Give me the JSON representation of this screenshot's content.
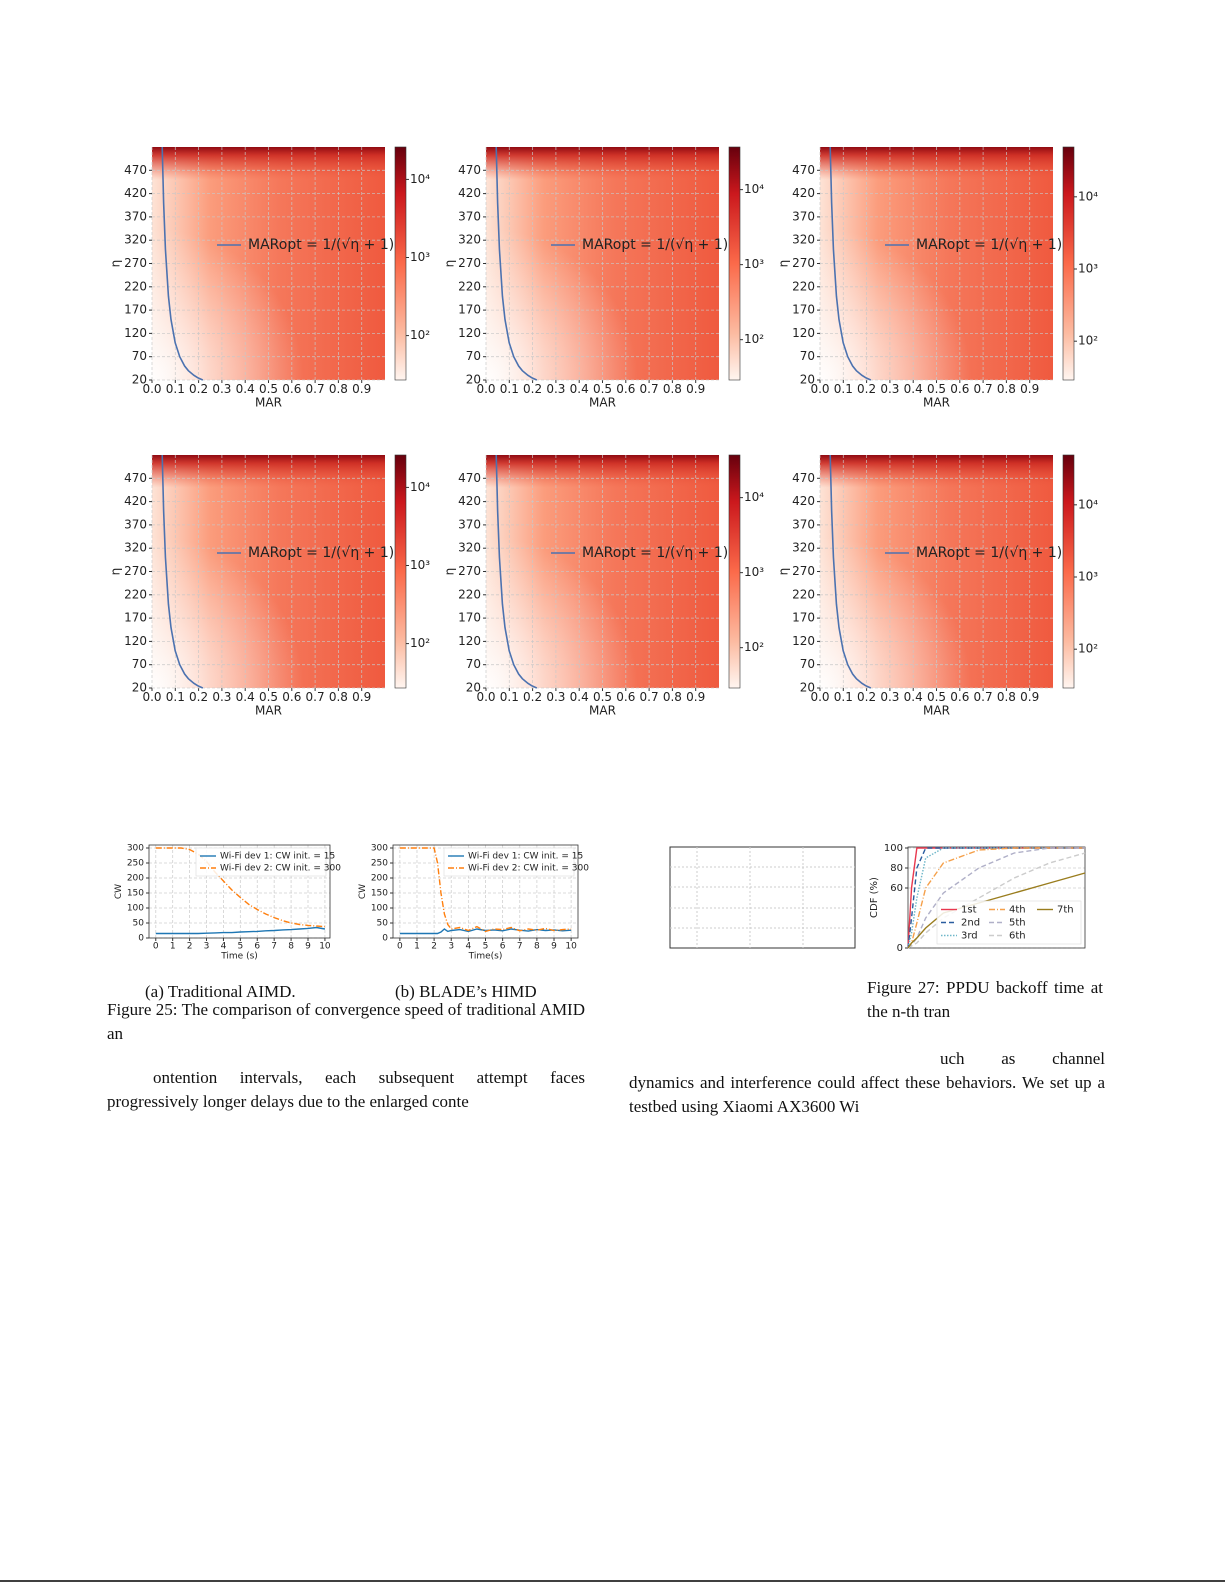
{
  "chart_data": [
    {
      "type": "heatmap",
      "xlabel": "MAR",
      "ylabel": "η",
      "xlim": [
        0,
        1
      ],
      "ylim": [
        20,
        520
      ],
      "xticks": [
        {
          "value": 0,
          "label": "0.0"
        },
        0.1,
        0.2,
        0.3,
        0.4,
        0.5,
        0.6,
        0.7,
        0.8,
        0.9
      ],
      "yticks": [
        20,
        70,
        120,
        170,
        220,
        270,
        320,
        370,
        420,
        470
      ],
      "grid": true,
      "series": [
        {
          "name": "MARopt = 1/(√η + 1)",
          "color": "#4c72b0",
          "x": [
            0.218,
            0.196,
            0.18,
            0.156,
            0.14,
            0.119,
            0.0995,
            0.0814,
            0.0705,
            0.0577,
            0.0499,
            0.0438
          ],
          "values": [
            20,
            25,
            30,
            40,
            50,
            70,
            100,
            150,
            200,
            300,
            400,
            520
          ]
        }
      ],
      "colorbar": {
        "log": true,
        "lim": [
          27,
          26000
        ],
        "ticks": [
          {
            "value": 100,
            "label": "10²"
          },
          {
            "value": 1000,
            "label": "10³"
          },
          {
            "value": 10000,
            "label": "10⁴"
          }
        ]
      }
    },
    {
      "type": "heatmap",
      "xlabel": "MAR",
      "ylabel": "η",
      "xlim": [
        0,
        1
      ],
      "ylim": [
        20,
        520
      ],
      "xticks": [
        {
          "value": 0,
          "label": "0.0"
        },
        0.1,
        0.2,
        0.3,
        0.4,
        0.5,
        0.6,
        0.7,
        0.8,
        0.9
      ],
      "yticks": [
        20,
        70,
        120,
        170,
        220,
        270,
        320,
        370,
        420,
        470
      ],
      "grid": true,
      "series": [
        {
          "name": "MARopt = 1/(√η + 1)",
          "color": "#4c72b0",
          "x": [
            0.218,
            0.196,
            0.18,
            0.156,
            0.14,
            0.119,
            0.0995,
            0.0814,
            0.0705,
            0.0577,
            0.0499,
            0.0438
          ],
          "values": [
            20,
            25,
            30,
            40,
            50,
            70,
            100,
            150,
            200,
            300,
            400,
            520
          ]
        }
      ],
      "colorbar": {
        "log": true,
        "lim": [
          29,
          37000
        ],
        "ticks": [
          {
            "value": 100,
            "label": "10²"
          },
          {
            "value": 1000,
            "label": "10³"
          },
          {
            "value": 10000,
            "label": "10⁴"
          }
        ]
      }
    },
    {
      "type": "heatmap",
      "xlabel": "MAR",
      "ylabel": "η",
      "xlim": [
        0,
        1
      ],
      "ylim": [
        20,
        520
      ],
      "xticks": [
        {
          "value": 0,
          "label": "0.0"
        },
        0.1,
        0.2,
        0.3,
        0.4,
        0.5,
        0.6,
        0.7,
        0.8,
        0.9
      ],
      "yticks": [
        20,
        70,
        120,
        170,
        220,
        270,
        320,
        370,
        420,
        470
      ],
      "grid": true,
      "series": [
        {
          "name": "MARopt = 1/(√η + 1)",
          "color": "#4c72b0",
          "x": [
            0.218,
            0.196,
            0.18,
            0.156,
            0.14,
            0.119,
            0.0995,
            0.0814,
            0.0705,
            0.0577,
            0.0499,
            0.0438
          ],
          "values": [
            20,
            25,
            30,
            40,
            50,
            70,
            100,
            150,
            200,
            300,
            400,
            520
          ]
        }
      ],
      "colorbar": {
        "log": true,
        "lim": [
          29,
          49000
        ],
        "ticks": [
          {
            "value": 100,
            "label": "10²"
          },
          {
            "value": 1000,
            "label": "10³"
          },
          {
            "value": 10000,
            "label": "10⁴"
          }
        ]
      }
    },
    {
      "type": "heatmap",
      "xlabel": "MAR",
      "ylabel": "η",
      "xlim": [
        0,
        1
      ],
      "ylim": [
        20,
        520
      ],
      "xticks": [
        {
          "value": 0,
          "label": "0.0"
        },
        0.1,
        0.2,
        0.3,
        0.4,
        0.5,
        0.6,
        0.7,
        0.8,
        0.9
      ],
      "yticks": [
        20,
        70,
        120,
        170,
        220,
        270,
        320,
        370,
        420,
        470
      ],
      "grid": true,
      "series": [
        {
          "name": "MARopt = 1/(√η + 1)",
          "color": "#4c72b0",
          "x": [
            0.218,
            0.196,
            0.18,
            0.156,
            0.14,
            0.119,
            0.0995,
            0.0814,
            0.0705,
            0.0577,
            0.0499,
            0.0438
          ],
          "values": [
            20,
            25,
            30,
            40,
            50,
            70,
            100,
            150,
            200,
            300,
            400,
            520
          ]
        }
      ],
      "colorbar": {
        "log": true,
        "lim": [
          27,
          26000
        ],
        "ticks": [
          {
            "value": 100,
            "label": "10²"
          },
          {
            "value": 1000,
            "label": "10³"
          },
          {
            "value": 10000,
            "label": "10⁴"
          }
        ]
      }
    },
    {
      "type": "heatmap",
      "xlabel": "MAR",
      "ylabel": "η",
      "xlim": [
        0,
        1
      ],
      "ylim": [
        20,
        520
      ],
      "xticks": [
        {
          "value": 0,
          "label": "0.0"
        },
        0.1,
        0.2,
        0.3,
        0.4,
        0.5,
        0.6,
        0.7,
        0.8,
        0.9
      ],
      "yticks": [
        20,
        70,
        120,
        170,
        220,
        270,
        320,
        370,
        420,
        470
      ],
      "grid": true,
      "series": [
        {
          "name": "MARopt = 1/(√η + 1)",
          "color": "#4c72b0",
          "x": [
            0.218,
            0.196,
            0.18,
            0.156,
            0.14,
            0.119,
            0.0995,
            0.0814,
            0.0705,
            0.0577,
            0.0499,
            0.0438
          ],
          "values": [
            20,
            25,
            30,
            40,
            50,
            70,
            100,
            150,
            200,
            300,
            400,
            520
          ]
        }
      ],
      "colorbar": {
        "log": true,
        "lim": [
          29,
          37000
        ],
        "ticks": [
          {
            "value": 100,
            "label": "10²"
          },
          {
            "value": 1000,
            "label": "10³"
          },
          {
            "value": 10000,
            "label": "10⁴"
          }
        ]
      }
    },
    {
      "type": "heatmap",
      "xlabel": "MAR",
      "ylabel": "η",
      "xlim": [
        0,
        1
      ],
      "ylim": [
        20,
        520
      ],
      "xticks": [
        {
          "value": 0,
          "label": "0.0"
        },
        0.1,
        0.2,
        0.3,
        0.4,
        0.5,
        0.6,
        0.7,
        0.8,
        0.9
      ],
      "yticks": [
        20,
        70,
        120,
        170,
        220,
        270,
        320,
        370,
        420,
        470
      ],
      "grid": true,
      "series": [
        {
          "name": "MARopt = 1/(√η + 1)",
          "color": "#4c72b0",
          "x": [
            0.218,
            0.196,
            0.18,
            0.156,
            0.14,
            0.119,
            0.0995,
            0.0814,
            0.0705,
            0.0577,
            0.0499,
            0.0438
          ],
          "values": [
            20,
            25,
            30,
            40,
            50,
            70,
            100,
            150,
            200,
            300,
            400,
            520
          ]
        }
      ],
      "colorbar": {
        "log": true,
        "lim": [
          29,
          49000
        ],
        "ticks": [
          {
            "value": 100,
            "label": "10²"
          },
          {
            "value": 1000,
            "label": "10³"
          },
          {
            "value": 10000,
            "label": "10⁴"
          }
        ]
      }
    },
    {
      "type": "line",
      "xlabel": "Time (s)",
      "ylabel": "CW",
      "xlim": [
        -0.4,
        10.3
      ],
      "ylim": [
        0,
        310
      ],
      "xticks": [
        0,
        1,
        2,
        3,
        4,
        5,
        6,
        7,
        8,
        9,
        10
      ],
      "yticks": [
        0,
        50,
        100,
        150,
        200,
        250,
        300
      ],
      "grid": true,
      "legend": "upper right",
      "x": [
        0,
        0.5,
        1,
        1.5,
        2,
        2.5,
        3,
        3.5,
        4,
        4.5,
        5,
        5.5,
        6,
        6.5,
        7,
        7.5,
        8,
        8.5,
        9,
        9.5,
        10
      ],
      "series": [
        {
          "name": "Wi-Fi dev 1: CW init. = 15",
          "color": "#1f77b4",
          "linestyle": "solid",
          "values": [
            15,
            15,
            15,
            15,
            15,
            15,
            16,
            17,
            18,
            18,
            20,
            21,
            22,
            24,
            25,
            27,
            28,
            30,
            32,
            35,
            30
          ]
        },
        {
          "name": "Wi-Fi dev 2: CW init. = 300",
          "color": "#ff7f0e",
          "linestyle": "dashdot",
          "values": [
            300,
            300,
            300,
            300,
            295,
            280,
            255,
            220,
            190,
            160,
            135,
            112,
            95,
            80,
            68,
            58,
            50,
            45,
            42,
            40,
            38
          ]
        }
      ]
    },
    {
      "type": "line",
      "xlabel": "Time(s)",
      "ylabel": "CW",
      "xlim": [
        -0.4,
        10.4
      ],
      "ylim": [
        0,
        310
      ],
      "xticks": [
        0,
        1,
        2,
        3,
        4,
        5,
        6,
        7,
        8,
        9,
        10
      ],
      "yticks": [
        0,
        50,
        100,
        150,
        200,
        250,
        300
      ],
      "grid": true,
      "legend": "upper right",
      "x": [
        0,
        0.5,
        1,
        1.5,
        2,
        2.2,
        2.4,
        2.6,
        2.8,
        3,
        3.5,
        4,
        4.5,
        5,
        5.5,
        6,
        6.5,
        7,
        7.5,
        8,
        8.5,
        9,
        9.5,
        10
      ],
      "series": [
        {
          "name": "Wi-Fi dev 1: CW init. = 15",
          "color": "#1f77b4",
          "linestyle": "solid",
          "values": [
            15,
            15,
            15,
            15,
            15,
            15,
            20,
            30,
            22,
            25,
            28,
            22,
            30,
            25,
            27,
            24,
            30,
            26,
            23,
            28,
            25,
            27,
            24,
            26
          ]
        },
        {
          "name": "Wi-Fi dev 2: CW init. = 300",
          "color": "#ff7f0e",
          "linestyle": "dashdot",
          "values": [
            300,
            300,
            300,
            300,
            300,
            250,
            150,
            80,
            45,
            30,
            35,
            25,
            38,
            22,
            30,
            28,
            35,
            24,
            30,
            26,
            32,
            25,
            28,
            30
          ]
        }
      ]
    },
    {
      "type": "line",
      "ylabel": "CDF (%)",
      "xlim": [
        0,
        100
      ],
      "ylim": [
        0,
        101
      ],
      "yticks": [
        100,
        80,
        60,
        0
      ],
      "grid": true,
      "legend": "lower right",
      "x": [
        0,
        2,
        5,
        10,
        20,
        40,
        60,
        80,
        100
      ],
      "series": [
        {
          "name": "1st",
          "color": "#e8384f",
          "linestyle": "solid",
          "values": [
            0,
            60,
            100,
            100,
            100,
            100,
            100,
            100,
            100
          ]
        },
        {
          "name": "2nd",
          "color": "#2a5d9f",
          "linestyle": "dashed",
          "values": [
            0,
            30,
            80,
            100,
            100,
            100,
            100,
            100,
            100
          ]
        },
        {
          "name": "3rd",
          "color": "#6fb7c9",
          "linestyle": "dotted",
          "values": [
            0,
            15,
            50,
            90,
            100,
            100,
            100,
            100,
            100
          ]
        },
        {
          "name": "4th",
          "color": "#f5a04a",
          "linestyle": "dashdot",
          "values": [
            0,
            5,
            25,
            60,
            85,
            98,
            100,
            100,
            100
          ]
        },
        {
          "name": "5th",
          "color": "#b0b0c8",
          "linestyle": "dashed",
          "values": [
            0,
            3,
            10,
            30,
            55,
            80,
            95,
            100,
            100
          ]
        },
        {
          "name": "6th",
          "color": "#cccccc",
          "linestyle": "dashed",
          "values": [
            0,
            2,
            5,
            15,
            30,
            50,
            70,
            85,
            95
          ]
        },
        {
          "name": "7th",
          "color": "#9a7d1e",
          "linestyle": "solid",
          "values": [
            0,
            5,
            10,
            20,
            35,
            45,
            55,
            65,
            75
          ]
        }
      ]
    }
  ],
  "captions": {
    "fig25a": "(a) Traditional AIMD.",
    "fig25b": "(b) BLADE’s HIMD",
    "fig25": "Figure 25: The comparison of convergence speed of traditional AMID an",
    "fig27": "Figure 27: PPDU backoff time at the n-th tran"
  },
  "paragraphs": [
    "ontention intervals, each subsequent attempt faces progressively longer delays due to the enlarged conte",
    "uch as channel dynamics and interference could affect these behaviors. We set up a testbed using Xiaomi AX3600 Wi"
  ]
}
